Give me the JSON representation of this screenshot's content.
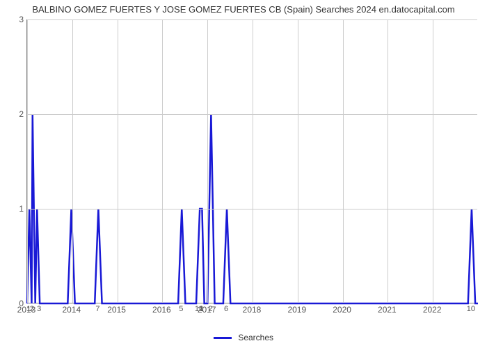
{
  "chart": {
    "type": "line",
    "title": "BALBINO GOMEZ FUERTES Y JOSE GOMEZ FUERTES CB (Spain) Searches 2024 en.datocapital.com",
    "title_fontsize": 13,
    "title_color": "#333333",
    "background_color": "#ffffff",
    "grid_color": "#cccccc",
    "axis_color": "#808080",
    "line_color": "#1919d6",
    "line_width": 2.5,
    "xlim": [
      2013,
      2023
    ],
    "ylim": [
      0,
      3
    ],
    "xlabels": [
      "2013",
      "2014",
      "2015",
      "2016",
      "2017",
      "2018",
      "2019",
      "2020",
      "2021",
      "2022"
    ],
    "yticks": [
      0,
      1,
      2,
      3
    ],
    "label_fontsize": 12,
    "label_color": "#555555",
    "legend_label": "Searches",
    "data": [
      {
        "x": 2013.0,
        "y": 0
      },
      {
        "x": 2013.05,
        "y": 1,
        "label": "1"
      },
      {
        "x": 2013.1,
        "y": 0
      },
      {
        "x": 2013.12,
        "y": 2,
        "label": "2"
      },
      {
        "x": 2013.18,
        "y": 0
      },
      {
        "x": 2013.22,
        "y": 1
      },
      {
        "x": 2013.28,
        "y": 0,
        "label": "3"
      },
      {
        "x": 2013.9,
        "y": 0
      },
      {
        "x": 2013.98,
        "y": 1
      },
      {
        "x": 2014.06,
        "y": 0
      },
      {
        "x": 2014.5,
        "y": 0
      },
      {
        "x": 2014.58,
        "y": 1,
        "label": "7"
      },
      {
        "x": 2014.66,
        "y": 0
      },
      {
        "x": 2016.35,
        "y": 0
      },
      {
        "x": 2016.43,
        "y": 1,
        "label": "5"
      },
      {
        "x": 2016.51,
        "y": 0
      },
      {
        "x": 2016.75,
        "y": 0
      },
      {
        "x": 2016.83,
        "y": 1,
        "label": "10"
      },
      {
        "x": 2016.88,
        "y": 1,
        "label": "1"
      },
      {
        "x": 2016.93,
        "y": 0
      },
      {
        "x": 2017.0,
        "y": 0
      },
      {
        "x": 2017.08,
        "y": 2,
        "label": "2"
      },
      {
        "x": 2017.16,
        "y": 0
      },
      {
        "x": 2017.35,
        "y": 0
      },
      {
        "x": 2017.43,
        "y": 1,
        "label": "6"
      },
      {
        "x": 2017.51,
        "y": 0
      },
      {
        "x": 2022.78,
        "y": 0
      },
      {
        "x": 2022.86,
        "y": 1,
        "label": "10"
      },
      {
        "x": 2022.94,
        "y": 0
      },
      {
        "x": 2023.0,
        "y": 0
      }
    ]
  }
}
